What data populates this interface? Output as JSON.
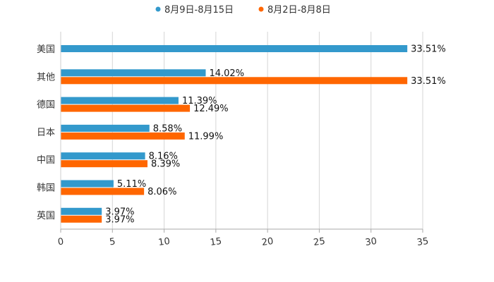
{
  "chart_data": {
    "type": "bar",
    "orientation": "horizontal",
    "title": "",
    "xlabel": "",
    "ylabel": "",
    "xlim": [
      0,
      35
    ],
    "x_ticks": [
      "0",
      "5",
      "10",
      "15",
      "20",
      "25",
      "30",
      "35"
    ],
    "x_tick_values": [
      0,
      5,
      10,
      15,
      20,
      25,
      30,
      35
    ],
    "grid": true,
    "legend_position": "top-center",
    "categories": [
      "美国",
      "其他",
      "德国",
      "日本",
      "中国",
      "韩国",
      "英国"
    ],
    "series": [
      {
        "name": "8月9日-8月15日",
        "color": "#3399cc",
        "values": [
          33.51,
          14.02,
          11.39,
          8.58,
          8.16,
          5.11,
          3.97
        ],
        "labels": [
          "33.51%",
          "14.02%",
          "11.39%",
          "8.58%",
          "8.16%",
          "5.11%",
          "3.97%"
        ]
      },
      {
        "name": "8月2日-8月8日",
        "color": "#ff6600",
        "values": [
          null,
          33.51,
          12.49,
          11.99,
          8.39,
          8.06,
          3.97
        ],
        "labels": [
          null,
          "33.51%",
          "12.49%",
          "11.99%",
          "8.39%",
          "8.06%",
          "3.97%"
        ]
      }
    ]
  }
}
